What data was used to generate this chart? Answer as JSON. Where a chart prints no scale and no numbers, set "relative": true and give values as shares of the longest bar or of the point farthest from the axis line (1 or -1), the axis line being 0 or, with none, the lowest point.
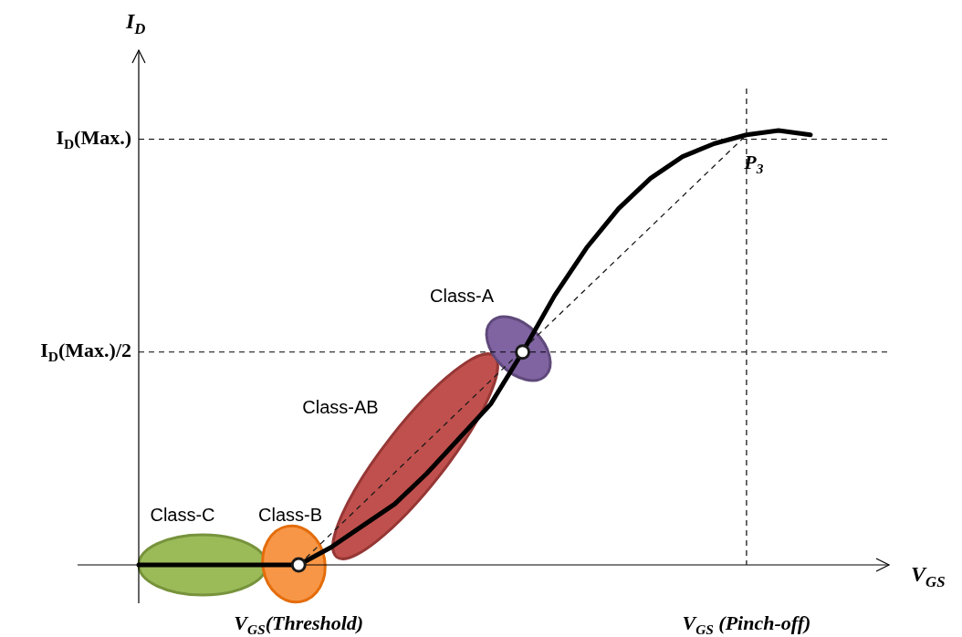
{
  "chart_data": {
    "type": "line",
    "relative": true,
    "xlabel": "V$_{GS}$",
    "ylabel": "I$_{D}$",
    "categories": [
      null,
      null,
      null,
      null,
      null,
      null,
      null,
      null,
      null,
      null,
      null,
      null,
      null,
      null,
      null,
      null,
      null,
      null,
      null,
      null,
      null,
      null
    ],
    "series": [
      {
        "type": "line",
        "color": "#000000",
        "line_style": "solid",
        "marker": "none",
        "values": [
          0,
          0,
          0,
          0,
          0,
          0,
          0.04,
          0.09,
          0.14,
          0.21,
          0.29,
          0.37,
          0.49,
          0.62,
          0.73,
          0.82,
          0.89,
          0.94,
          0.97,
          0.99,
          1.0,
          0.99
        ]
      }
    ],
    "ref_lines": [
      {
        "axis": "y",
        "value": 0.98,
        "label": "I$_{D}$(Max.)",
        "line_style": "dashed"
      },
      {
        "axis": "y",
        "value": 0.49,
        "label": "I$_{D}$(Max.)/2",
        "line_style": "dashed"
      }
    ],
    "annotations": [
      "Class-C",
      "Class-B",
      "Class-AB",
      "Class-A",
      "P$_{3}$",
      "V$_{GS}$(Threshold)",
      "V$_{GS}$ (Pinch-off)"
    ]
  }
}
